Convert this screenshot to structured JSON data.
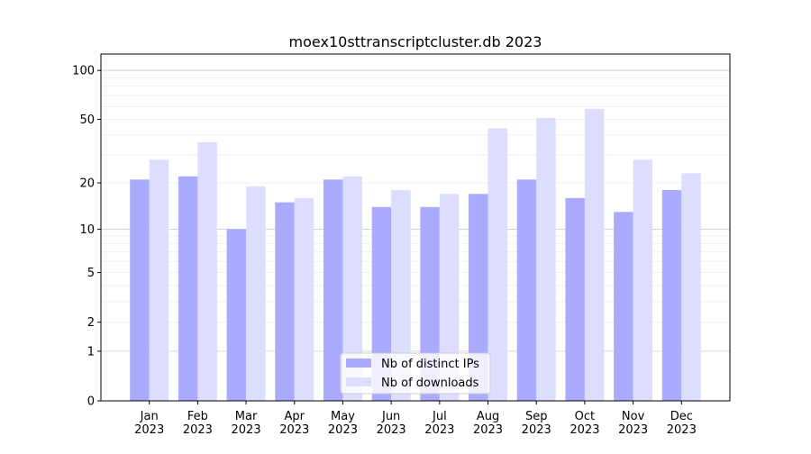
{
  "chart_data": {
    "type": "bar",
    "title": "moex10sttranscriptcluster.db 2023",
    "xlabel": "",
    "ylabel": "",
    "yscale": "log(1+y)",
    "ylim": [
      0,
      126
    ],
    "yticks": [
      0,
      1,
      2,
      5,
      10,
      20,
      50,
      100
    ],
    "grid": true,
    "legend_position": "lower center",
    "categories": [
      "Jan\n2023",
      "Feb\n2023",
      "Mar\n2023",
      "Apr\n2023",
      "May\n2023",
      "Jun\n2023",
      "Jul\n2023",
      "Aug\n2023",
      "Sep\n2023",
      "Oct\n2023",
      "Nov\n2023",
      "Dec\n2023"
    ],
    "series": [
      {
        "name": "Nb of distinct IPs",
        "color": "#aaaaff",
        "values": [
          21,
          22,
          10,
          15,
          21,
          14,
          14,
          17,
          21,
          16,
          13,
          18
        ]
      },
      {
        "name": "Nb of downloads",
        "color": "#ddddff",
        "values": [
          28,
          36,
          19,
          16,
          22,
          18,
          17,
          44,
          51,
          58,
          28,
          23
        ]
      }
    ]
  }
}
